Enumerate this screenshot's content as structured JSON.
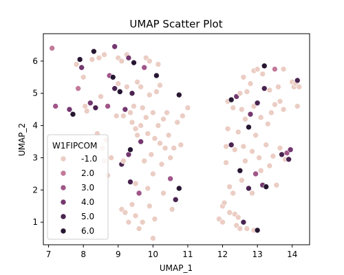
{
  "chart_data": {
    "type": "scatter",
    "title": "UMAP Scatter Plot",
    "xlabel": "UMAP_1",
    "ylabel": "UMAP_2",
    "xlim": [
      6.85,
      14.5
    ],
    "ylim": [
      0.3,
      6.85
    ],
    "xticks": [
      7,
      8,
      9,
      10,
      11,
      12,
      13,
      14
    ],
    "yticks": [
      1,
      2,
      3,
      4,
      5,
      6
    ],
    "legend": {
      "title": "W1FIPCOM",
      "placement": "center-left",
      "entries": [
        {
          "label": "-1.0",
          "color": "#ebcdc4"
        },
        {
          "label": "2.0",
          "color": "#c27a99"
        },
        {
          "label": "3.0",
          "color": "#a05689"
        },
        {
          "label": "4.0",
          "color": "#74386f"
        },
        {
          "label": "5.0",
          "color": "#4a2450"
        },
        {
          "label": "6.0",
          "color": "#271631"
        }
      ]
    },
    "points": [
      {
        "x": 7.1,
        "y": 6.4,
        "c": 2.0
      },
      {
        "x": 7.2,
        "y": 4.6,
        "c": 3.0
      },
      {
        "x": 7.6,
        "y": 4.5,
        "c": 4.0
      },
      {
        "x": 7.7,
        "y": 4.35,
        "c": 6.0
      },
      {
        "x": 7.8,
        "y": 5.9,
        "c": -1.0
      },
      {
        "x": 7.85,
        "y": 5.15,
        "c": 2.0
      },
      {
        "x": 7.9,
        "y": 6.05,
        "c": 6.0
      },
      {
        "x": 7.95,
        "y": 5.8,
        "c": 4.0
      },
      {
        "x": 8.0,
        "y": 5.5,
        "c": -1.0
      },
      {
        "x": 8.05,
        "y": 4.6,
        "c": -1.0
      },
      {
        "x": 8.1,
        "y": 4.45,
        "c": -1.0
      },
      {
        "x": 8.2,
        "y": 4.7,
        "c": 4.0
      },
      {
        "x": 8.25,
        "y": 6.05,
        "c": -1.0
      },
      {
        "x": 8.3,
        "y": 6.3,
        "c": 6.0
      },
      {
        "x": 8.35,
        "y": 4.55,
        "c": 5.0
      },
      {
        "x": 8.4,
        "y": 3.75,
        "c": -1.0
      },
      {
        "x": 8.45,
        "y": 6.1,
        "c": -1.0
      },
      {
        "x": 8.5,
        "y": 4.9,
        "c": -1.0
      },
      {
        "x": 8.55,
        "y": 3.3,
        "c": -1.0
      },
      {
        "x": 8.6,
        "y": 6.2,
        "c": -1.0
      },
      {
        "x": 8.6,
        "y": 2.9,
        "c": -1.0
      },
      {
        "x": 8.65,
        "y": 3.55,
        "c": -1.0
      },
      {
        "x": 8.7,
        "y": 4.6,
        "c": 3.0
      },
      {
        "x": 8.7,
        "y": 2.45,
        "c": -1.0
      },
      {
        "x": 8.75,
        "y": 5.55,
        "c": 3.0
      },
      {
        "x": 8.8,
        "y": 3.0,
        "c": -1.0
      },
      {
        "x": 8.85,
        "y": 5.5,
        "c": 6.0
      },
      {
        "x": 8.9,
        "y": 5.15,
        "c": 5.0
      },
      {
        "x": 8.9,
        "y": 6.45,
        "c": 4.0
      },
      {
        "x": 8.95,
        "y": 4.3,
        "c": -1.0
      },
      {
        "x": 9.0,
        "y": 5.3,
        "c": -1.0
      },
      {
        "x": 9.0,
        "y": 6.1,
        "c": -1.0
      },
      {
        "x": 9.05,
        "y": 5.05,
        "c": 6.0
      },
      {
        "x": 9.1,
        "y": 2.8,
        "c": 5.0
      },
      {
        "x": 9.1,
        "y": 1.4,
        "c": -1.0
      },
      {
        "x": 9.1,
        "y": 6.0,
        "c": -1.0
      },
      {
        "x": 9.15,
        "y": 4.3,
        "c": -1.0
      },
      {
        "x": 9.15,
        "y": 2.9,
        "c": -1.0
      },
      {
        "x": 9.2,
        "y": 4.5,
        "c": 4.0
      },
      {
        "x": 9.2,
        "y": 1.3,
        "c": -1.0
      },
      {
        "x": 9.25,
        "y": 6.2,
        "c": -1.0
      },
      {
        "x": 9.25,
        "y": 5.2,
        "c": -1.0
      },
      {
        "x": 9.3,
        "y": 3.1,
        "c": 4.0
      },
      {
        "x": 9.3,
        "y": 1.0,
        "c": -1.0
      },
      {
        "x": 9.3,
        "y": 6.1,
        "c": 4.0
      },
      {
        "x": 9.35,
        "y": 4.4,
        "c": -1.0
      },
      {
        "x": 9.35,
        "y": 3.25,
        "c": 6.0
      },
      {
        "x": 9.35,
        "y": 2.25,
        "c": 5.0
      },
      {
        "x": 9.4,
        "y": 5.0,
        "c": 5.0
      },
      {
        "x": 9.4,
        "y": 4.1,
        "c": -1.0
      },
      {
        "x": 9.4,
        "y": 1.55,
        "c": -1.0
      },
      {
        "x": 9.45,
        "y": 5.95,
        "c": 6.0
      },
      {
        "x": 9.45,
        "y": 4.6,
        "c": -1.0
      },
      {
        "x": 9.5,
        "y": 3.9,
        "c": -1.0
      },
      {
        "x": 9.5,
        "y": 2.2,
        "c": -1.0
      },
      {
        "x": 9.5,
        "y": 1.2,
        "c": -1.0
      },
      {
        "x": 9.55,
        "y": 5.35,
        "c": -1.0
      },
      {
        "x": 9.55,
        "y": 3.7,
        "c": -1.0
      },
      {
        "x": 9.6,
        "y": 1.9,
        "c": 3.0
      },
      {
        "x": 9.6,
        "y": 0.8,
        "c": -1.0
      },
      {
        "x": 9.65,
        "y": 5.2,
        "c": -1.0
      },
      {
        "x": 9.65,
        "y": 4.0,
        "c": -1.0
      },
      {
        "x": 9.65,
        "y": 3.5,
        "c": 4.0
      },
      {
        "x": 9.7,
        "y": 4.55,
        "c": -1.0
      },
      {
        "x": 9.7,
        "y": 1.0,
        "c": -1.0
      },
      {
        "x": 9.75,
        "y": 5.8,
        "c": 3.0
      },
      {
        "x": 9.75,
        "y": 2.9,
        "c": -1.0
      },
      {
        "x": 9.8,
        "y": 6.1,
        "c": -1.0
      },
      {
        "x": 9.8,
        "y": 4.25,
        "c": -1.0
      },
      {
        "x": 9.85,
        "y": 2.05,
        "c": -1.0
      },
      {
        "x": 9.85,
        "y": 3.75,
        "c": -1.0
      },
      {
        "x": 9.9,
        "y": 6.0,
        "c": -1.0
      },
      {
        "x": 9.9,
        "y": 4.95,
        "c": -1.0
      },
      {
        "x": 9.9,
        "y": 1.5,
        "c": -1.0
      },
      {
        "x": 9.95,
        "y": 3.1,
        "c": -1.0
      },
      {
        "x": 10.0,
        "y": 4.4,
        "c": -1.0
      },
      {
        "x": 10.0,
        "y": 2.5,
        "c": -1.0
      },
      {
        "x": 10.0,
        "y": 0.5,
        "c": -1.0
      },
      {
        "x": 10.05,
        "y": 3.6,
        "c": -1.0
      },
      {
        "x": 10.05,
        "y": 1.1,
        "c": -1.0
      },
      {
        "x": 10.1,
        "y": 5.55,
        "c": 6.0
      },
      {
        "x": 10.1,
        "y": 5.05,
        "c": -1.0
      },
      {
        "x": 10.15,
        "y": 5.9,
        "c": -1.0
      },
      {
        "x": 10.15,
        "y": 4.0,
        "c": -1.0
      },
      {
        "x": 10.2,
        "y": 5.25,
        "c": -1.0
      },
      {
        "x": 10.2,
        "y": 3.45,
        "c": -1.0
      },
      {
        "x": 10.25,
        "y": 2.8,
        "c": -1.0
      },
      {
        "x": 10.3,
        "y": 4.2,
        "c": -1.0
      },
      {
        "x": 10.3,
        "y": 1.9,
        "c": -1.0
      },
      {
        "x": 10.35,
        "y": 3.3,
        "c": -1.0
      },
      {
        "x": 10.4,
        "y": 4.4,
        "c": -1.0
      },
      {
        "x": 10.45,
        "y": 3.7,
        "c": -1.0
      },
      {
        "x": 10.5,
        "y": 3.0,
        "c": -1.0
      },
      {
        "x": 10.5,
        "y": 2.35,
        "c": 3.0
      },
      {
        "x": 10.55,
        "y": 1.4,
        "c": -1.0
      },
      {
        "x": 10.6,
        "y": 3.3,
        "c": -1.0
      },
      {
        "x": 10.65,
        "y": 1.7,
        "c": 5.0
      },
      {
        "x": 10.7,
        "y": 4.1,
        "c": -1.0
      },
      {
        "x": 10.75,
        "y": 2.05,
        "c": 6.0
      },
      {
        "x": 10.75,
        "y": 4.95,
        "c": 6.0
      },
      {
        "x": 10.8,
        "y": 3.4,
        "c": -1.0
      },
      {
        "x": 10.85,
        "y": 4.3,
        "c": -1.0
      },
      {
        "x": 11.0,
        "y": 4.55,
        "c": -1.0
      },
      {
        "x": 11.9,
        "y": 1.1,
        "c": -1.0
      },
      {
        "x": 12.0,
        "y": 1.5,
        "c": -1.0
      },
      {
        "x": 12.0,
        "y": 1.0,
        "c": -1.0
      },
      {
        "x": 12.05,
        "y": 1.6,
        "c": -1.0
      },
      {
        "x": 12.1,
        "y": 2.85,
        "c": -1.0
      },
      {
        "x": 12.1,
        "y": 3.35,
        "c": -1.0
      },
      {
        "x": 12.15,
        "y": 4.75,
        "c": -1.0
      },
      {
        "x": 12.15,
        "y": 3.9,
        "c": -1.0
      },
      {
        "x": 12.2,
        "y": 1.3,
        "c": -1.0
      },
      {
        "x": 12.2,
        "y": 2.1,
        "c": -1.0
      },
      {
        "x": 12.25,
        "y": 3.4,
        "c": 5.0
      },
      {
        "x": 12.25,
        "y": 4.8,
        "c": 6.0
      },
      {
        "x": 12.3,
        "y": 4.55,
        "c": -1.0
      },
      {
        "x": 12.3,
        "y": 1.9,
        "c": -1.0
      },
      {
        "x": 12.35,
        "y": 3.25,
        "c": -1.0
      },
      {
        "x": 12.35,
        "y": 1.25,
        "c": -1.0
      },
      {
        "x": 12.4,
        "y": 4.9,
        "c": 4.0
      },
      {
        "x": 12.4,
        "y": 0.9,
        "c": -1.0
      },
      {
        "x": 12.45,
        "y": 3.8,
        "c": -1.0
      },
      {
        "x": 12.45,
        "y": 1.15,
        "c": -1.0
      },
      {
        "x": 12.5,
        "y": 5.0,
        "c": -1.0
      },
      {
        "x": 12.5,
        "y": 2.6,
        "c": 6.0
      },
      {
        "x": 12.5,
        "y": 0.8,
        "c": -1.0
      },
      {
        "x": 12.55,
        "y": 4.5,
        "c": -1.0
      },
      {
        "x": 12.55,
        "y": 2.3,
        "c": -1.0
      },
      {
        "x": 12.6,
        "y": 5.5,
        "c": -1.0
      },
      {
        "x": 12.6,
        "y": 3.35,
        "c": -1.0
      },
      {
        "x": 12.6,
        "y": 1.0,
        "c": 5.0
      },
      {
        "x": 12.65,
        "y": 4.2,
        "c": -1.0
      },
      {
        "x": 12.65,
        "y": 2.9,
        "c": -1.0
      },
      {
        "x": 12.7,
        "y": 5.05,
        "c": -1.0
      },
      {
        "x": 12.7,
        "y": 0.8,
        "c": -1.0
      },
      {
        "x": 12.75,
        "y": 3.95,
        "c": 6.0
      },
      {
        "x": 12.75,
        "y": 2.05,
        "c": 5.0
      },
      {
        "x": 12.8,
        "y": 5.3,
        "c": -1.0
      },
      {
        "x": 12.8,
        "y": 4.35,
        "c": 4.0
      },
      {
        "x": 12.85,
        "y": 3.2,
        "c": -1.0
      },
      {
        "x": 12.85,
        "y": 1.9,
        "c": -1.0
      },
      {
        "x": 12.9,
        "y": 5.7,
        "c": -1.0
      },
      {
        "x": 12.9,
        "y": 4.6,
        "c": -1.0
      },
      {
        "x": 12.9,
        "y": 0.75,
        "c": -1.0
      },
      {
        "x": 12.95,
        "y": 3.7,
        "c": -1.0
      },
      {
        "x": 12.95,
        "y": 2.5,
        "c": 3.0
      },
      {
        "x": 13.0,
        "y": 4.7,
        "c": 5.0
      },
      {
        "x": 13.0,
        "y": 5.75,
        "c": -1.0
      },
      {
        "x": 13.0,
        "y": 0.75,
        "c": 6.0
      },
      {
        "x": 13.05,
        "y": 3.0,
        "c": -1.0
      },
      {
        "x": 13.1,
        "y": 4.25,
        "c": -1.0
      },
      {
        "x": 13.1,
        "y": 2.6,
        "c": -1.0
      },
      {
        "x": 13.15,
        "y": 5.6,
        "c": -1.0
      },
      {
        "x": 13.15,
        "y": 2.15,
        "c": 4.0
      },
      {
        "x": 13.2,
        "y": 5.85,
        "c": 6.0
      },
      {
        "x": 13.2,
        "y": 5.15,
        "c": 5.0
      },
      {
        "x": 13.25,
        "y": 3.4,
        "c": -1.0
      },
      {
        "x": 13.25,
        "y": 2.1,
        "c": 6.0
      },
      {
        "x": 13.3,
        "y": 4.05,
        "c": -1.0
      },
      {
        "x": 13.35,
        "y": 5.1,
        "c": -1.0
      },
      {
        "x": 13.35,
        "y": 2.75,
        "c": -1.0
      },
      {
        "x": 13.4,
        "y": 4.4,
        "c": -1.0
      },
      {
        "x": 13.45,
        "y": 3.05,
        "c": -1.0
      },
      {
        "x": 13.5,
        "y": 5.75,
        "c": 2.0
      },
      {
        "x": 13.5,
        "y": 4.65,
        "c": -1.0
      },
      {
        "x": 13.55,
        "y": 2.15,
        "c": -1.0
      },
      {
        "x": 13.6,
        "y": 5.2,
        "c": -1.0
      },
      {
        "x": 13.65,
        "y": 3.3,
        "c": -1.0
      },
      {
        "x": 13.65,
        "y": 4.75,
        "c": -1.0
      },
      {
        "x": 13.7,
        "y": 3.1,
        "c": 5.0
      },
      {
        "x": 13.75,
        "y": 4.5,
        "c": -1.0
      },
      {
        "x": 13.75,
        "y": 5.75,
        "c": -1.0
      },
      {
        "x": 13.8,
        "y": 2.95,
        "c": -1.0
      },
      {
        "x": 13.85,
        "y": 3.15,
        "c": 3.0
      },
      {
        "x": 13.9,
        "y": 2.95,
        "c": 5.0
      },
      {
        "x": 13.95,
        "y": 3.25,
        "c": 4.0
      },
      {
        "x": 14.0,
        "y": 5.35,
        "c": -1.0
      },
      {
        "x": 14.05,
        "y": 5.2,
        "c": -1.0
      },
      {
        "x": 14.1,
        "y": 5.3,
        "c": -1.0
      },
      {
        "x": 14.15,
        "y": 5.4,
        "c": 5.0
      },
      {
        "x": 14.15,
        "y": 4.6,
        "c": -1.0
      },
      {
        "x": 14.2,
        "y": 5.2,
        "c": -1.0
      }
    ]
  }
}
